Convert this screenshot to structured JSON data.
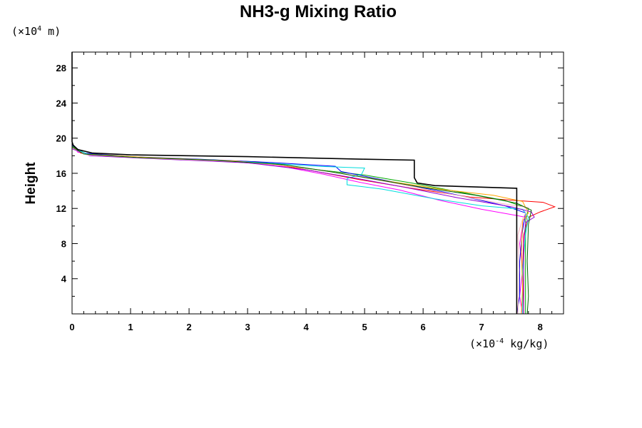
{
  "chart_data": {
    "type": "line",
    "title": "NH3-g Mixing Ratio",
    "ylabel": "Height",
    "xlabel": "",
    "y_unit": {
      "prefix": "(×10",
      "exp": "4",
      "suffix": " m)"
    },
    "x_unit": {
      "prefix": "(×10",
      "exp": "-4",
      "suffix": " kg/kg)"
    },
    "xlim": [
      0,
      8.4
    ],
    "ylim": [
      0,
      29.8
    ],
    "x_ticks": [
      0,
      1,
      2,
      3,
      4,
      5,
      6,
      7,
      8
    ],
    "x_tick_labels": [
      "0",
      "1",
      "2",
      "3",
      "4",
      "5",
      "6",
      "7",
      "8"
    ],
    "y_ticks": [
      4,
      8,
      12,
      16,
      20,
      24,
      28
    ],
    "y_tick_labels": [
      "4",
      "8",
      "12",
      "16",
      "20",
      "24",
      "28"
    ],
    "grid": false,
    "series": [
      {
        "color": "#000000",
        "main": true,
        "points": [
          [
            7.6,
            0
          ],
          [
            7.6,
            14.3
          ],
          [
            6.2,
            14.6
          ],
          [
            5.9,
            14.9
          ],
          [
            5.85,
            15.5
          ],
          [
            5.85,
            17.5
          ],
          [
            5.0,
            17.6
          ],
          [
            3.0,
            17.9
          ],
          [
            1.0,
            18.1
          ],
          [
            0.35,
            18.3
          ],
          [
            0.1,
            18.7
          ],
          [
            0.02,
            19.2
          ],
          [
            0,
            19.6
          ],
          [
            0,
            29.8
          ]
        ]
      },
      {
        "color": "#ff00ff",
        "points": [
          [
            0,
            29.8
          ],
          [
            0,
            19.6
          ],
          [
            0.02,
            19.1
          ],
          [
            0.1,
            18.4
          ],
          [
            0.5,
            18.0
          ],
          [
            1.5,
            17.7
          ],
          [
            2.6,
            17.4
          ],
          [
            3.5,
            16.9
          ],
          [
            4.3,
            15.9
          ],
          [
            4.9,
            15.0
          ],
          [
            5.6,
            14.1
          ],
          [
            6.3,
            12.9
          ],
          [
            7.0,
            11.9
          ],
          [
            7.6,
            11.2
          ],
          [
            7.75,
            11.0
          ],
          [
            7.7,
            10.0
          ],
          [
            7.65,
            8.0
          ],
          [
            7.7,
            5.0
          ],
          [
            7.65,
            2.0
          ],
          [
            7.7,
            0
          ]
        ]
      },
      {
        "color": "#ff0000",
        "points": [
          [
            0,
            19.3
          ],
          [
            0.15,
            18.3
          ],
          [
            0.8,
            17.9
          ],
          [
            2.0,
            17.6
          ],
          [
            3.2,
            17.3
          ],
          [
            4.1,
            16.3
          ],
          [
            4.9,
            15.3
          ],
          [
            5.8,
            14.3
          ],
          [
            6.8,
            13.3
          ],
          [
            7.6,
            12.9
          ],
          [
            8.05,
            12.7
          ],
          [
            8.25,
            12.2
          ],
          [
            8.0,
            11.6
          ],
          [
            7.8,
            11.0
          ],
          [
            7.72,
            9.0
          ],
          [
            7.7,
            5.0
          ],
          [
            7.72,
            0
          ]
        ]
      },
      {
        "color": "#00aa00",
        "points": [
          [
            0,
            19.1
          ],
          [
            0.25,
            18.2
          ],
          [
            1.2,
            17.8
          ],
          [
            2.5,
            17.5
          ],
          [
            3.5,
            17.0
          ],
          [
            4.2,
            16.4
          ],
          [
            5.0,
            15.8
          ],
          [
            5.8,
            14.9
          ],
          [
            6.6,
            13.9
          ],
          [
            7.4,
            12.9
          ],
          [
            7.8,
            12.0
          ],
          [
            7.75,
            10.5
          ],
          [
            7.75,
            8.0
          ],
          [
            7.75,
            4.0
          ],
          [
            7.75,
            0
          ]
        ]
      },
      {
        "color": "#0000ff",
        "points": [
          [
            0,
            19.2
          ],
          [
            0.2,
            18.3
          ],
          [
            1.0,
            17.9
          ],
          [
            2.2,
            17.6
          ],
          [
            3.5,
            17.2
          ],
          [
            4.5,
            16.8
          ],
          [
            4.6,
            16.2
          ],
          [
            5.5,
            15.0
          ],
          [
            6.4,
            13.8
          ],
          [
            7.4,
            12.3
          ],
          [
            7.75,
            11.5
          ],
          [
            7.7,
            9.5
          ],
          [
            7.65,
            6.0
          ],
          [
            7.65,
            2.0
          ],
          [
            7.6,
            0
          ]
        ]
      },
      {
        "color": "#00dddd",
        "points": [
          [
            0,
            18.9
          ],
          [
            0.3,
            18.1
          ],
          [
            1.5,
            17.7
          ],
          [
            3.0,
            17.3
          ],
          [
            4.2,
            16.8
          ],
          [
            5.0,
            16.6
          ],
          [
            4.95,
            15.9
          ],
          [
            4.7,
            15.4
          ],
          [
            4.7,
            14.7
          ],
          [
            5.3,
            14.2
          ],
          [
            6.2,
            13.1
          ],
          [
            7.0,
            12.3
          ],
          [
            7.7,
            11.9
          ],
          [
            7.8,
            11.0
          ],
          [
            7.75,
            9.0
          ],
          [
            7.7,
            5.0
          ],
          [
            7.7,
            0
          ]
        ]
      },
      {
        "color": "#ffa500",
        "points": [
          [
            0,
            19.0
          ],
          [
            0.2,
            18.2
          ],
          [
            1.3,
            17.8
          ],
          [
            2.8,
            17.4
          ],
          [
            4.0,
            16.6
          ],
          [
            4.6,
            16.0
          ],
          [
            5.4,
            15.1
          ],
          [
            6.4,
            14.1
          ],
          [
            7.2,
            13.5
          ],
          [
            7.7,
            12.8
          ],
          [
            7.8,
            11.5
          ],
          [
            7.7,
            10.6
          ],
          [
            7.68,
            7.0
          ],
          [
            7.7,
            3.0
          ],
          [
            7.68,
            0
          ]
        ]
      },
      {
        "color": "#9400d3",
        "points": [
          [
            0,
            18.8
          ],
          [
            0.3,
            18.0
          ],
          [
            1.6,
            17.6
          ],
          [
            3.0,
            17.2
          ],
          [
            4.0,
            16.4
          ],
          [
            4.8,
            15.5
          ],
          [
            5.7,
            14.4
          ],
          [
            6.6,
            13.2
          ],
          [
            7.5,
            12.2
          ],
          [
            7.85,
            11.6
          ],
          [
            7.9,
            11.0
          ],
          [
            7.75,
            10.4
          ],
          [
            7.72,
            8.0
          ],
          [
            7.72,
            4.0
          ],
          [
            7.72,
            0
          ]
        ]
      },
      {
        "color": "#ffb6c1",
        "points": [
          [
            0,
            18.9
          ],
          [
            0.25,
            18.1
          ],
          [
            1.4,
            17.7
          ],
          [
            2.9,
            17.3
          ],
          [
            3.9,
            16.7
          ],
          [
            4.7,
            15.9
          ],
          [
            5.5,
            14.9
          ],
          [
            6.5,
            13.6
          ],
          [
            7.3,
            12.6
          ],
          [
            7.8,
            12.1
          ],
          [
            7.7,
            10.8
          ],
          [
            7.62,
            9.0
          ],
          [
            7.64,
            5.0
          ],
          [
            7.62,
            0
          ]
        ]
      },
      {
        "color": "#006400",
        "points": [
          [
            0,
            19.0
          ],
          [
            0.2,
            18.2
          ],
          [
            1.1,
            17.8
          ],
          [
            2.4,
            17.5
          ],
          [
            3.6,
            17.0
          ],
          [
            4.4,
            16.2
          ],
          [
            5.1,
            15.4
          ],
          [
            6.0,
            14.4
          ],
          [
            6.9,
            13.5
          ],
          [
            7.6,
            12.6
          ],
          [
            7.85,
            11.8
          ],
          [
            7.8,
            10.2
          ],
          [
            7.78,
            6.0
          ],
          [
            7.8,
            2.0
          ],
          [
            7.78,
            0
          ]
        ]
      }
    ]
  }
}
